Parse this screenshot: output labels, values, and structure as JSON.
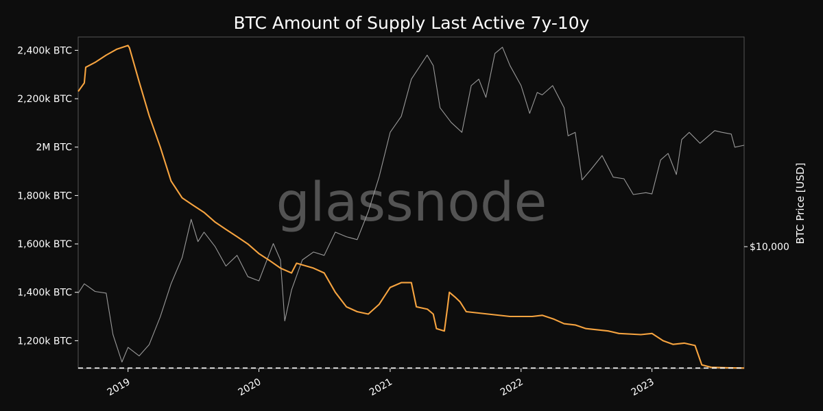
{
  "chart_data": {
    "type": "line",
    "title": "BTC Amount of Supply Last Active 7y-10y",
    "watermark": "glassnode",
    "xlabel": "",
    "ylabel_left": "",
    "ylabel_right": "BTC Price [USD]",
    "x_range": [
      "2018-08-15",
      "2023-09-15"
    ],
    "x_ticks": [
      "2019",
      "2020",
      "2021",
      "2022",
      "2023"
    ],
    "y_left": {
      "ylim": [
        1085000,
        2455000
      ],
      "ticks": [
        {
          "value": 1200000,
          "label": "1,200k BTC"
        },
        {
          "value": 1400000,
          "label": "1,400k BTC"
        },
        {
          "value": 1600000,
          "label": "1,600k BTC"
        },
        {
          "value": 1800000,
          "label": "1,800k BTC"
        },
        {
          "value": 2000000,
          "label": "2M BTC"
        },
        {
          "value": 2200000,
          "label": "2,200k BTC"
        },
        {
          "value": 2400000,
          "label": "2,400k BTC"
        }
      ]
    },
    "y_right": {
      "scale": "log",
      "ylim": [
        3100,
        75000
      ],
      "ticks": [
        {
          "value": 10000,
          "label": "$10,000"
        }
      ]
    },
    "reference_line": {
      "value": 1087000,
      "style": "dashed",
      "color": "#ffffff"
    },
    "colors": {
      "supply": "#f7a440",
      "price": "#9a9a9a",
      "background": "#0d0d0d",
      "frame": "#555555"
    },
    "series": [
      {
        "name": "",
        "axis": "left",
        "color": "#f7a440",
        "points": [
          [
            "2018-08-15",
            2230000
          ],
          [
            "2018-09-01",
            2265000
          ],
          [
            "2018-09-05",
            2330000
          ],
          [
            "2018-10-01",
            2350000
          ],
          [
            "2018-11-01",
            2380000
          ],
          [
            "2018-12-01",
            2405000
          ],
          [
            "2019-01-01",
            2420000
          ],
          [
            "2019-01-05",
            2410000
          ],
          [
            "2019-02-01",
            2270000
          ],
          [
            "2019-03-01",
            2130000
          ],
          [
            "2019-04-01",
            2000000
          ],
          [
            "2019-05-01",
            1860000
          ],
          [
            "2019-06-01",
            1790000
          ],
          [
            "2019-07-01",
            1760000
          ],
          [
            "2019-08-01",
            1730000
          ],
          [
            "2019-09-01",
            1690000
          ],
          [
            "2019-10-01",
            1660000
          ],
          [
            "2019-11-01",
            1630000
          ],
          [
            "2019-12-01",
            1600000
          ],
          [
            "2020-01-01",
            1560000
          ],
          [
            "2020-02-01",
            1530000
          ],
          [
            "2020-03-01",
            1500000
          ],
          [
            "2020-04-01",
            1480000
          ],
          [
            "2020-04-15",
            1520000
          ],
          [
            "2020-06-01",
            1500000
          ],
          [
            "2020-07-01",
            1480000
          ],
          [
            "2020-08-01",
            1400000
          ],
          [
            "2020-09-01",
            1340000
          ],
          [
            "2020-10-01",
            1320000
          ],
          [
            "2020-11-01",
            1310000
          ],
          [
            "2020-12-01",
            1350000
          ],
          [
            "2021-01-01",
            1420000
          ],
          [
            "2021-02-01",
            1440000
          ],
          [
            "2021-03-01",
            1440000
          ],
          [
            "2021-03-15",
            1340000
          ],
          [
            "2021-04-15",
            1330000
          ],
          [
            "2021-05-01",
            1310000
          ],
          [
            "2021-05-10",
            1250000
          ],
          [
            "2021-06-01",
            1240000
          ],
          [
            "2021-06-10",
            1340000
          ],
          [
            "2021-06-15",
            1400000
          ],
          [
            "2021-07-01",
            1380000
          ],
          [
            "2021-07-15",
            1360000
          ],
          [
            "2021-08-01",
            1320000
          ],
          [
            "2021-10-01",
            1310000
          ],
          [
            "2021-12-01",
            1300000
          ],
          [
            "2022-02-01",
            1300000
          ],
          [
            "2022-03-01",
            1305000
          ],
          [
            "2022-04-01",
            1290000
          ],
          [
            "2022-05-01",
            1270000
          ],
          [
            "2022-06-01",
            1265000
          ],
          [
            "2022-07-01",
            1250000
          ],
          [
            "2022-09-01",
            1240000
          ],
          [
            "2022-10-01",
            1230000
          ],
          [
            "2022-12-01",
            1225000
          ],
          [
            "2023-01-01",
            1230000
          ],
          [
            "2023-02-01",
            1200000
          ],
          [
            "2023-03-01",
            1185000
          ],
          [
            "2023-04-01",
            1190000
          ],
          [
            "2023-05-01",
            1180000
          ],
          [
            "2023-05-20",
            1100000
          ],
          [
            "2023-06-15",
            1090000
          ],
          [
            "2023-08-01",
            1088000
          ],
          [
            "2023-09-15",
            1087000
          ]
        ]
      },
      {
        "name": "",
        "axis": "right",
        "color": "#9a9a9a",
        "points": [
          [
            "2018-08-15",
            6400
          ],
          [
            "2018-09-01",
            7000
          ],
          [
            "2018-10-01",
            6500
          ],
          [
            "2018-11-01",
            6400
          ],
          [
            "2018-11-20",
            4300
          ],
          [
            "2018-12-15",
            3300
          ],
          [
            "2019-01-01",
            3800
          ],
          [
            "2019-02-01",
            3500
          ],
          [
            "2019-03-01",
            3900
          ],
          [
            "2019-04-01",
            5100
          ],
          [
            "2019-05-01",
            7000
          ],
          [
            "2019-06-01",
            9000
          ],
          [
            "2019-06-26",
            13000
          ],
          [
            "2019-07-15",
            10500
          ],
          [
            "2019-08-01",
            11500
          ],
          [
            "2019-09-01",
            10000
          ],
          [
            "2019-10-01",
            8300
          ],
          [
            "2019-11-01",
            9200
          ],
          [
            "2019-12-01",
            7500
          ],
          [
            "2020-01-01",
            7200
          ],
          [
            "2020-02-10",
            10300
          ],
          [
            "2020-03-01",
            8800
          ],
          [
            "2020-03-13",
            4900
          ],
          [
            "2020-04-01",
            6600
          ],
          [
            "2020-05-01",
            8800
          ],
          [
            "2020-06-01",
            9500
          ],
          [
            "2020-07-01",
            9200
          ],
          [
            "2020-08-01",
            11500
          ],
          [
            "2020-09-01",
            11000
          ],
          [
            "2020-10-01",
            10700
          ],
          [
            "2020-11-01",
            14000
          ],
          [
            "2020-12-01",
            19500
          ],
          [
            "2021-01-01",
            30000
          ],
          [
            "2021-02-01",
            35000
          ],
          [
            "2021-03-01",
            50000
          ],
          [
            "2021-04-14",
            63000
          ],
          [
            "2021-05-01",
            57000
          ],
          [
            "2021-05-20",
            38000
          ],
          [
            "2021-06-20",
            33000
          ],
          [
            "2021-07-20",
            30000
          ],
          [
            "2021-08-15",
            47000
          ],
          [
            "2021-09-05",
            50000
          ],
          [
            "2021-09-25",
            42000
          ],
          [
            "2021-10-20",
            64000
          ],
          [
            "2021-11-10",
            68000
          ],
          [
            "2021-12-01",
            57000
          ],
          [
            "2022-01-01",
            47000
          ],
          [
            "2022-01-25",
            36000
          ],
          [
            "2022-02-15",
            44000
          ],
          [
            "2022-03-01",
            43000
          ],
          [
            "2022-03-30",
            47000
          ],
          [
            "2022-05-01",
            38000
          ],
          [
            "2022-05-12",
            29000
          ],
          [
            "2022-06-01",
            30000
          ],
          [
            "2022-06-20",
            19000
          ],
          [
            "2022-07-15",
            21000
          ],
          [
            "2022-08-15",
            24000
          ],
          [
            "2022-09-15",
            19500
          ],
          [
            "2022-10-15",
            19200
          ],
          [
            "2022-11-10",
            16500
          ],
          [
            "2022-12-15",
            16800
          ],
          [
            "2023-01-01",
            16600
          ],
          [
            "2023-01-25",
            23000
          ],
          [
            "2023-02-15",
            24500
          ],
          [
            "2023-03-10",
            20000
          ],
          [
            "2023-03-25",
            28000
          ],
          [
            "2023-04-15",
            30000
          ],
          [
            "2023-05-15",
            27000
          ],
          [
            "2023-06-25",
            30500
          ],
          [
            "2023-07-15",
            30000
          ],
          [
            "2023-08-10",
            29500
          ],
          [
            "2023-08-20",
            26000
          ],
          [
            "2023-09-15",
            26500
          ]
        ]
      }
    ]
  }
}
